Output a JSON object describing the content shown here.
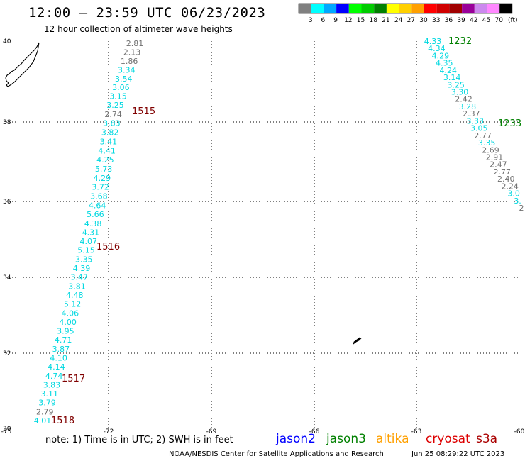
{
  "header": {
    "title": "12:00 – 23:59 UTC 06/23/2023",
    "subtitle": "12 hour collection of altimeter wave heights"
  },
  "legend": {
    "unit": "(ft)",
    "bins": [
      {
        "label": "3",
        "color": "#808080"
      },
      {
        "label": "6",
        "color": "#00ffff"
      },
      {
        "label": "9",
        "color": "#00a8ff"
      },
      {
        "label": "12",
        "color": "#0000ff"
      },
      {
        "label": "15",
        "color": "#00ff00"
      },
      {
        "label": "18",
        "color": "#00cc00"
      },
      {
        "label": "21",
        "color": "#008000"
      },
      {
        "label": "24",
        "color": "#ffff00"
      },
      {
        "label": "27",
        "color": "#ffd000"
      },
      {
        "label": "30",
        "color": "#ffa000"
      },
      {
        "label": "33",
        "color": "#ff0000"
      },
      {
        "label": "36",
        "color": "#d00000"
      },
      {
        "label": "39",
        "color": "#a00000"
      },
      {
        "label": "42",
        "color": "#990099"
      },
      {
        "label": "45",
        "color": "#cc88ee"
      },
      {
        "label": "70",
        "color": "#ff88ff"
      },
      {
        "label": "",
        "color": "#000000"
      }
    ]
  },
  "axes": {
    "lon_ticks": [
      "-75",
      "-72",
      "-69",
      "-66",
      "-63",
      "-60"
    ],
    "lat_ticks": [
      "40",
      "38",
      "36",
      "34",
      "32",
      "30"
    ]
  },
  "track_west": {
    "readings": [
      {
        "v": "2.81",
        "color": "#707070"
      },
      {
        "v": "2.13",
        "color": "#707070"
      },
      {
        "v": "1.86",
        "color": "#707070"
      },
      {
        "v": "3.34",
        "color": "#00d8e0"
      },
      {
        "v": "3.54",
        "color": "#00d8e0"
      },
      {
        "v": "3.06",
        "color": "#00d8e0"
      },
      {
        "v": "3.15",
        "color": "#00d8e0"
      },
      {
        "v": "3.25",
        "color": "#00d8e0"
      },
      {
        "v": "2.74",
        "color": "#707070"
      },
      {
        "v": "3.83",
        "color": "#00d8e0"
      },
      {
        "v": "3.82",
        "color": "#00d8e0"
      },
      {
        "v": "3.41",
        "color": "#00d8e0"
      },
      {
        "v": "4.41",
        "color": "#00d8e0"
      },
      {
        "v": "4.25",
        "color": "#00d8e0"
      },
      {
        "v": "5.73",
        "color": "#00d8e0"
      },
      {
        "v": "4.29",
        "color": "#00d8e0"
      },
      {
        "v": "3.72",
        "color": "#00d8e0"
      },
      {
        "v": "3.68",
        "color": "#00d8e0"
      },
      {
        "v": "4.64",
        "color": "#00d8e0"
      },
      {
        "v": "5.66",
        "color": "#00d8e0"
      },
      {
        "v": "4.38",
        "color": "#00d8e0"
      },
      {
        "v": "4.31",
        "color": "#00d8e0"
      },
      {
        "v": "4.07",
        "color": "#00d8e0"
      },
      {
        "v": "5.15",
        "color": "#00d8e0"
      },
      {
        "v": "3.35",
        "color": "#00d8e0"
      },
      {
        "v": "4.39",
        "color": "#00d8e0"
      },
      {
        "v": "3.47",
        "color": "#00d8e0"
      },
      {
        "v": "3.81",
        "color": "#00d8e0"
      },
      {
        "v": "4.48",
        "color": "#00d8e0"
      },
      {
        "v": "5.12",
        "color": "#00d8e0"
      },
      {
        "v": "4.06",
        "color": "#00d8e0"
      },
      {
        "v": "4.00",
        "color": "#00d8e0"
      },
      {
        "v": "3.95",
        "color": "#00d8e0"
      },
      {
        "v": "4.71",
        "color": "#00d8e0"
      },
      {
        "v": "3.87",
        "color": "#00d8e0"
      },
      {
        "v": "4.10",
        "color": "#00d8e0"
      },
      {
        "v": "4.14",
        "color": "#00d8e0"
      },
      {
        "v": "4.74",
        "color": "#00d8e0"
      },
      {
        "v": "3.83",
        "color": "#00d8e0"
      },
      {
        "v": "3.11",
        "color": "#00d8e0"
      },
      {
        "v": "3.79",
        "color": "#00d8e0"
      },
      {
        "v": "2.79",
        "color": "#707070"
      },
      {
        "v": "4.01",
        "color": "#00d8e0"
      }
    ],
    "times": [
      "1515",
      "1516",
      "1517",
      "1518"
    ],
    "time_color": "#800000"
  },
  "track_east": {
    "readings": [
      {
        "v": "4.33",
        "color": "#00d8e0"
      },
      {
        "v": "4.34",
        "color": "#00d8e0"
      },
      {
        "v": "4.29",
        "color": "#00d8e0"
      },
      {
        "v": "4.35",
        "color": "#00d8e0"
      },
      {
        "v": "4.24",
        "color": "#00d8e0"
      },
      {
        "v": "3.14",
        "color": "#00d8e0"
      },
      {
        "v": "3.25",
        "color": "#00d8e0"
      },
      {
        "v": "3.30",
        "color": "#00d8e0"
      },
      {
        "v": "2.42",
        "color": "#707070"
      },
      {
        "v": "3.28",
        "color": "#00d8e0"
      },
      {
        "v": "2.37",
        "color": "#707070"
      },
      {
        "v": "3.33",
        "color": "#00d8e0"
      },
      {
        "v": "3.05",
        "color": "#00d8e0"
      },
      {
        "v": "2.77",
        "color": "#707070"
      },
      {
        "v": "3.35",
        "color": "#00d8e0"
      },
      {
        "v": "2.69",
        "color": "#707070"
      },
      {
        "v": "2.91",
        "color": "#707070"
      },
      {
        "v": "2.47",
        "color": "#707070"
      },
      {
        "v": "2.77",
        "color": "#707070"
      },
      {
        "v": "2.40",
        "color": "#707070"
      },
      {
        "v": "2.24",
        "color": "#707070"
      },
      {
        "v": "3.0",
        "color": "#00d8e0"
      },
      {
        "v": "3.",
        "color": "#00d8e0"
      },
      {
        "v": "2",
        "color": "#707070"
      }
    ],
    "times": [
      "1232",
      "1233"
    ],
    "time_color": "#008000"
  },
  "footer": {
    "note": "note:  1) Time is in UTC;  2) SWH is in feet",
    "satellites": [
      {
        "name": "jason2",
        "color": "#0000ff"
      },
      {
        "name": "jason3",
        "color": "#008000"
      },
      {
        "name": "altika",
        "color": "#ffa000"
      },
      {
        "name": "cryosat",
        "color": "#dd0000"
      },
      {
        "name": "s3a",
        "color": "#aa0000"
      }
    ],
    "credit": "NOAA/NESDIS Center for Satellite Applications and Research",
    "timestamp": "Jun 25 08:29:22 UTC 2023"
  }
}
